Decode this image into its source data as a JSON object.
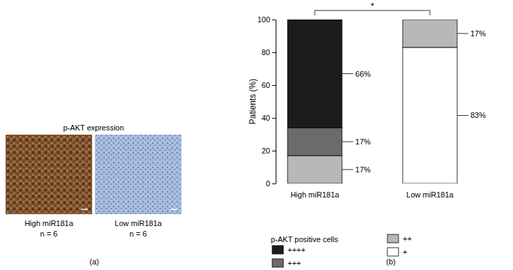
{
  "panel_a": {
    "label": "(a)",
    "title": "p-AKT expression",
    "images": [
      {
        "label": "High miR181a",
        "n": "n = 6"
      },
      {
        "label": "Low miR181a",
        "n": "n = 6"
      }
    ]
  },
  "chart_data": {
    "type": "bar",
    "stacked": true,
    "panel_label": "(b)",
    "y_label": "Patients (%)",
    "categories": [
      "High miR181a",
      "Low miR181a"
    ],
    "ylim": [
      0,
      100
    ],
    "yticks": [
      0,
      20,
      40,
      60,
      80,
      100
    ],
    "data_labels": true,
    "legend": "bottom",
    "legend_title": "p-AKT positive cells",
    "annotations": [
      {
        "text": "*",
        "categories": [
          "High miR181a",
          "Low miR181a"
        ]
      }
    ],
    "series": [
      {
        "name": "+",
        "color": "#ffffff",
        "values": [
          0,
          83
        ],
        "value_labels": [
          null,
          "83%"
        ]
      },
      {
        "name": "++",
        "color": "#b8b8b8",
        "values": [
          17,
          17
        ],
        "value_labels": [
          "17%",
          "17%"
        ]
      },
      {
        "name": "+++",
        "color": "#6b6b6b",
        "values": [
          17,
          0
        ],
        "value_labels": [
          "17%",
          null
        ]
      },
      {
        "name": "++++",
        "color": "#1c1c1c",
        "values": [
          66,
          0
        ],
        "value_labels": [
          "66%",
          null
        ]
      }
    ]
  }
}
